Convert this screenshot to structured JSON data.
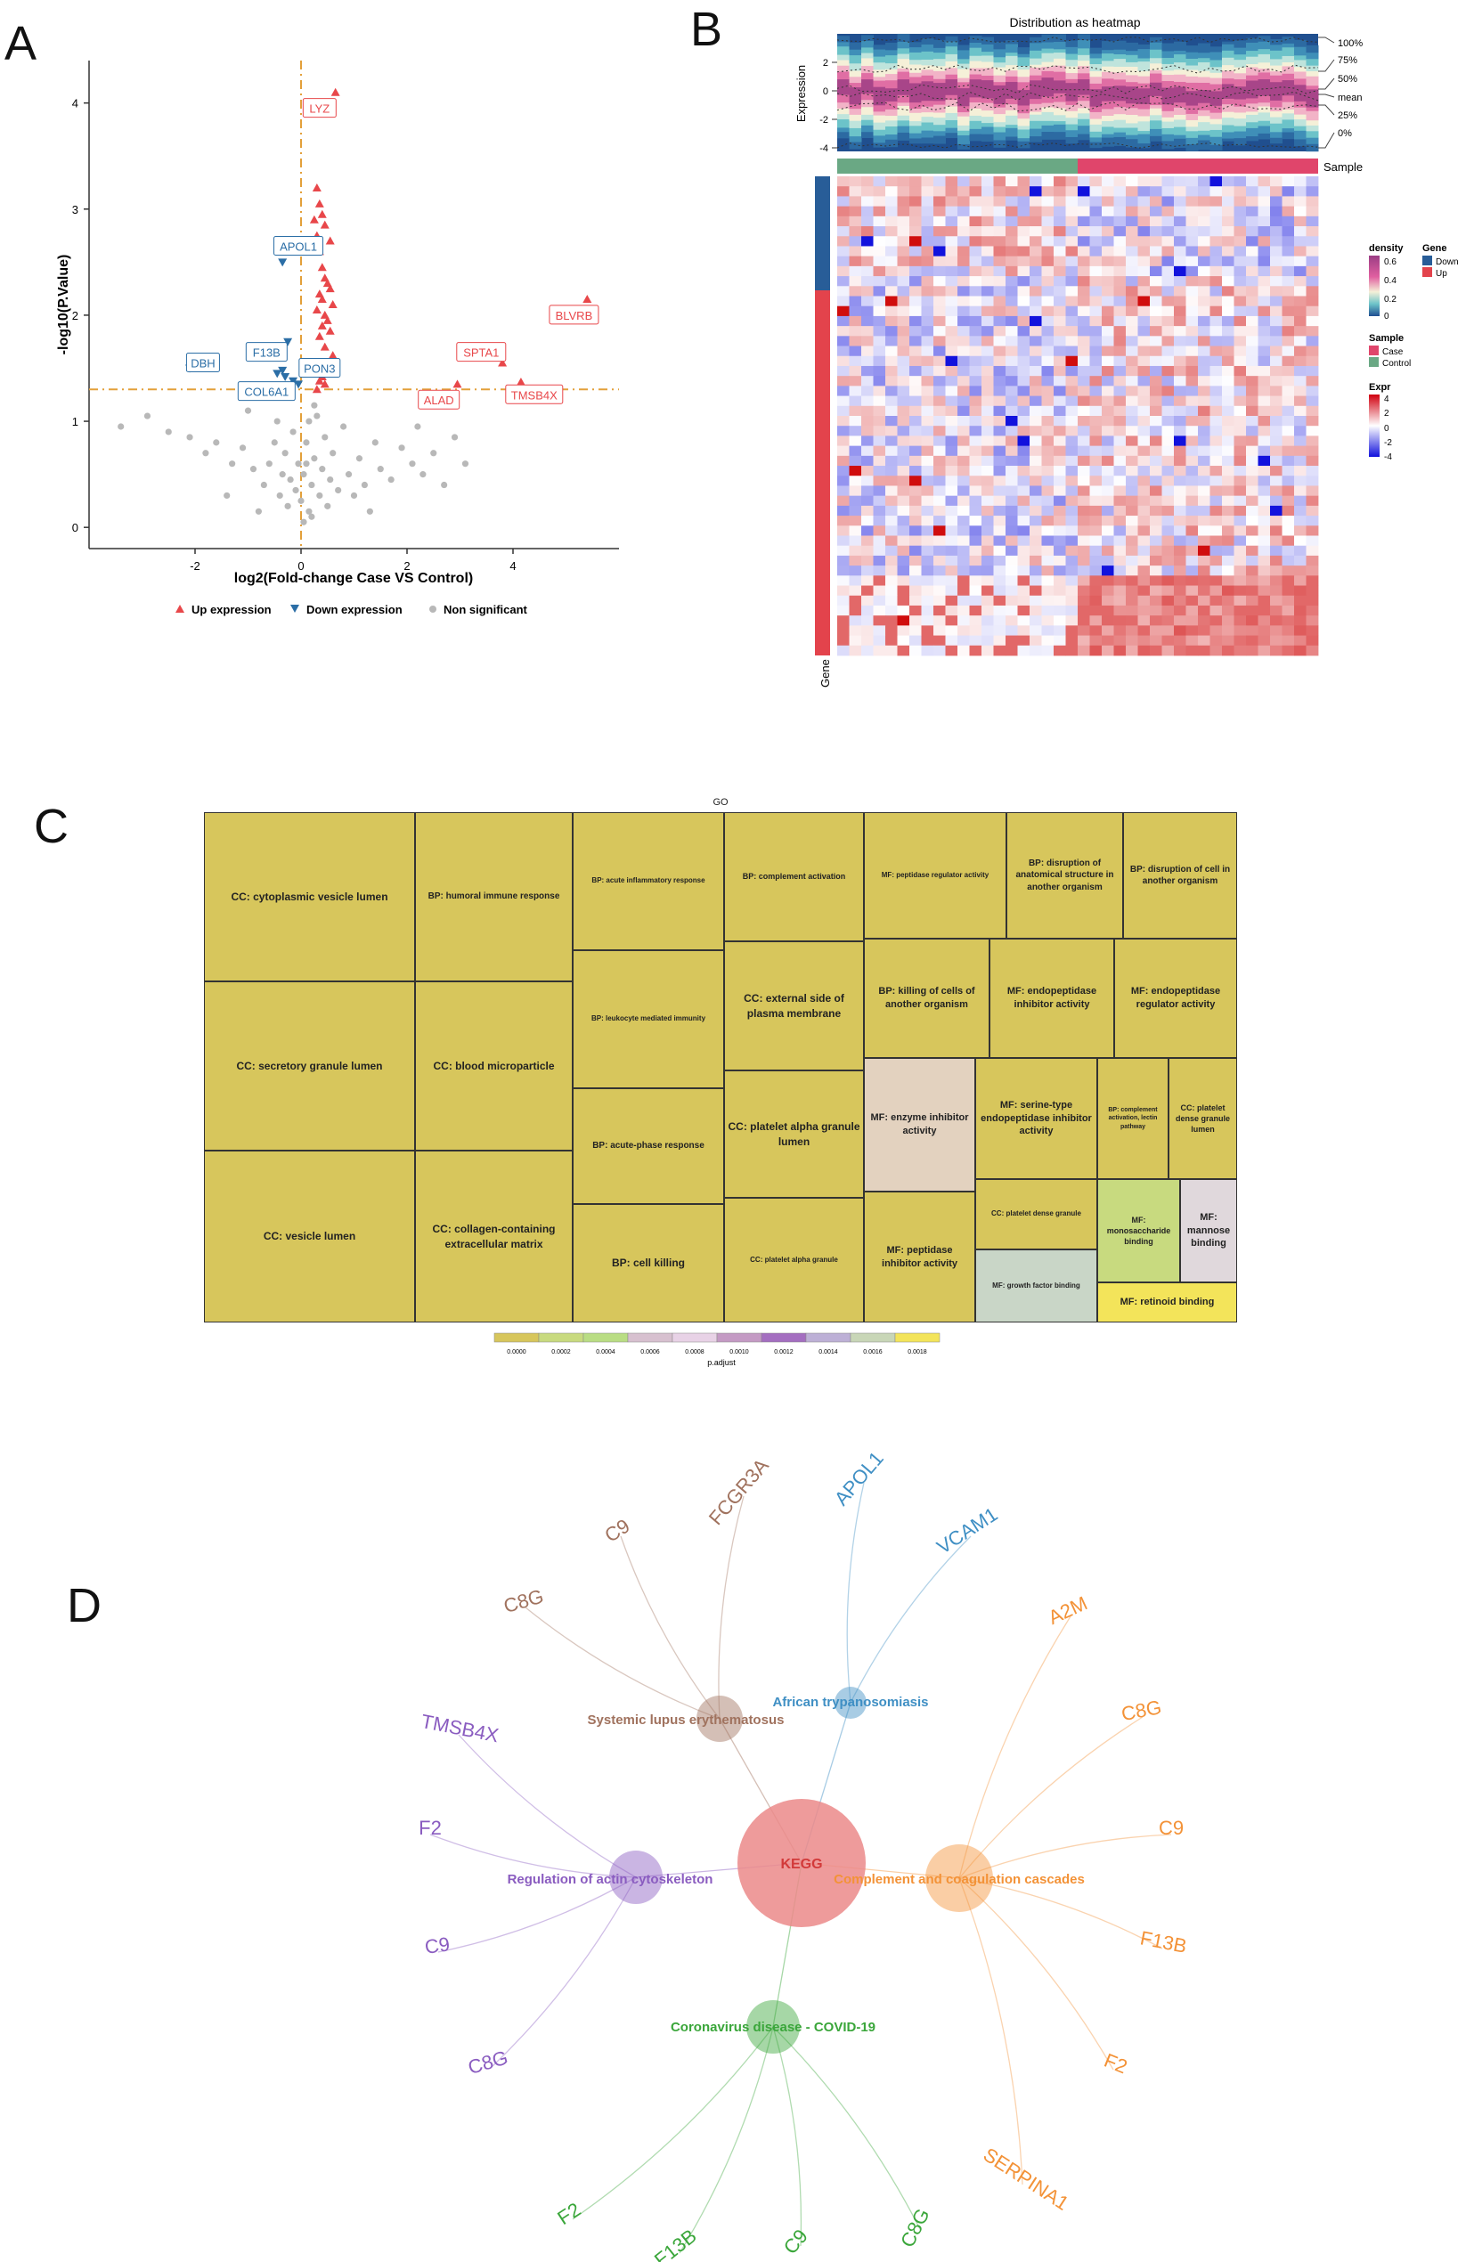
{
  "panels": {
    "a": "A",
    "b": "B",
    "c": "C",
    "d": "D"
  },
  "volcano": {
    "xlabel": "log2(Fold-change Case VS Control)",
    "ylabel": "-log10(P.Value)",
    "x_ticks": [
      "-2",
      "0",
      "2",
      "4"
    ],
    "y_ticks": [
      "0",
      "1",
      "2",
      "3",
      "4"
    ],
    "legend": {
      "up": "Up expression",
      "down": "Down expression",
      "ns": "Non significant"
    },
    "colors": {
      "up": "#e8474a",
      "down": "#2b6ea6",
      "ns": "#b8b8b8",
      "threshold": "#e3a03a"
    },
    "labels": [
      {
        "text": "LYZ",
        "type": "up",
        "x": 0.35,
        "y": 3.95
      },
      {
        "text": "APOL1",
        "type": "down",
        "x": -0.05,
        "y": 2.65
      },
      {
        "text": "BLVRB",
        "type": "up",
        "x": 5.15,
        "y": 2.0
      },
      {
        "text": "DBH",
        "type": "down",
        "x": -1.85,
        "y": 1.55
      },
      {
        "text": "F13B",
        "type": "down",
        "x": -0.65,
        "y": 1.65
      },
      {
        "text": "PON3",
        "type": "down",
        "x": 0.35,
        "y": 1.5
      },
      {
        "text": "COL6A1",
        "type": "down",
        "x": -0.65,
        "y": 1.28
      },
      {
        "text": "SPTA1",
        "type": "up",
        "x": 3.4,
        "y": 1.65
      },
      {
        "text": "ALAD",
        "type": "up",
        "x": 2.6,
        "y": 1.2
      },
      {
        "text": "TMSB4X",
        "type": "up",
        "x": 4.4,
        "y": 1.25
      }
    ]
  },
  "heatmap": {
    "title": "Distribution as heatmap",
    "ylabel_top": "Expression",
    "y_ticks": [
      "2",
      "0",
      "-2",
      "-4"
    ],
    "quantiles": [
      "100%",
      "75%",
      "50%",
      "mean",
      "25%",
      "0%"
    ],
    "sample_label": "Sample",
    "gene_label": "Gene",
    "legend": {
      "density": {
        "title": "density",
        "labels": [
          "0.6",
          "0.4",
          "0.2",
          "0"
        ]
      },
      "gene": {
        "title": "Gene",
        "items": [
          "Down",
          "Up"
        ]
      },
      "sample": {
        "title": "Sample",
        "items": [
          "Case",
          "Control"
        ]
      },
      "expr": {
        "title": "Expr",
        "labels": [
          "4",
          "2",
          "0",
          "-2",
          "-4"
        ]
      }
    }
  },
  "treemap": {
    "title": "GO",
    "cells": [
      "CC: cytoplasmic vesicle lumen",
      "CC: secretory granule lumen",
      "CC: vesicle lumen",
      "BP: humoral immune response",
      "CC: blood microparticle",
      "CC: collagen-containing extracellular matrix",
      "BP: acute inflammatory response",
      "BP: leukocyte mediated immunity",
      "BP: acute-phase response",
      "BP: cell killing",
      "BP: complement activation",
      "CC: external side of plasma membrane",
      "CC: platelet alpha granule lumen",
      "CC: platelet alpha granule",
      "MF: peptidase regulator activity",
      "BP: disruption of anatomical structure in another organism",
      "BP: disruption of cell in another organism",
      "BP: killing of cells of another organism",
      "MF: endopeptidase inhibitor activity",
      "MF: endopeptidase regulator activity",
      "MF: enzyme inhibitor activity",
      "MF: serine-type endopeptidase inhibitor activity",
      "BP: complement activation, lectin pathway",
      "CC: platelet dense granule lumen",
      "CC: platelet dense granule",
      "MF: peptidase inhibitor activity",
      "MF: monosaccharide binding",
      "MF: mannose binding",
      "MF: growth factor binding",
      "MF: retinoid binding"
    ],
    "scale_label": "p.adjust",
    "scale_ticks": [
      "0.0000",
      "0.0002",
      "0.0004",
      "0.0006",
      "0.0008",
      "0.0010",
      "0.0012",
      "0.0014",
      "0.0016",
      "0.0018"
    ]
  },
  "network": {
    "center": "KEGG",
    "pathways": [
      {
        "name": "Systemic lupus erythematosus",
        "color": "#a0725e",
        "genes": [
          "FCGR3A",
          "C9",
          "C8G"
        ]
      },
      {
        "name": "African trypanosomiasis",
        "color": "#3f8fc4",
        "genes": [
          "APOL1",
          "VCAM1"
        ]
      },
      {
        "name": "Complement and coagulation cascades",
        "color": "#f39237",
        "genes": [
          "A2M",
          "C8G",
          "C9",
          "F13B",
          "F2",
          "SERPINA1"
        ]
      },
      {
        "name": "Regulation of actin cytoskeleton",
        "color": "#8a5cc0",
        "genes": [
          "TMSB4X",
          "F2",
          "C9",
          "C8G"
        ]
      },
      {
        "name": "Coronavirus disease - COVID-19",
        "color": "#3aa63a",
        "genes": [
          "F2",
          "F13B",
          "C9",
          "C8G"
        ]
      }
    ]
  },
  "chart_data": [
    {
      "type": "scatter",
      "title": "",
      "xlabel": "log2(Fold-change Case VS Control)",
      "ylabel": "-log10(P.Value)",
      "xlim": [
        -4,
        6
      ],
      "ylim": [
        -0.2,
        4.4
      ],
      "thresholds": {
        "x": 0,
        "y": 1.3
      },
      "series": [
        {
          "name": "Up expression",
          "points": [
            [
              0.3,
              3.2
            ],
            [
              0.35,
              3.05
            ],
            [
              0.4,
              2.95
            ],
            [
              0.25,
              2.9
            ],
            [
              0.45,
              2.85
            ],
            [
              0.3,
              2.75
            ],
            [
              0.55,
              2.7
            ],
            [
              0.35,
              2.6
            ],
            [
              0.4,
              2.45
            ],
            [
              0.45,
              2.35
            ],
            [
              0.5,
              2.3
            ],
            [
              0.55,
              2.25
            ],
            [
              0.35,
              2.2
            ],
            [
              0.4,
              2.15
            ],
            [
              0.6,
              2.1
            ],
            [
              0.3,
              2.05
            ],
            [
              0.45,
              2.0
            ],
            [
              0.5,
              1.95
            ],
            [
              0.4,
              1.9
            ],
            [
              0.55,
              1.85
            ],
            [
              0.35,
              1.8
            ],
            [
              0.45,
              1.7
            ],
            [
              0.6,
              1.62
            ],
            [
              0.3,
              1.55
            ],
            [
              0.5,
              1.48
            ],
            [
              0.4,
              1.42
            ],
            [
              0.35,
              1.38
            ],
            [
              0.45,
              1.35
            ],
            [
              0.65,
              4.1
            ],
            [
              5.4,
              2.15
            ],
            [
              3.8,
              1.55
            ],
            [
              4.15,
              1.37
            ],
            [
              2.95,
              1.35
            ],
            [
              0.3,
              1.3
            ]
          ]
        },
        {
          "name": "Down expression",
          "points": [
            [
              -0.35,
              2.5
            ],
            [
              -2.1,
              1.5
            ],
            [
              -0.25,
              1.75
            ],
            [
              -0.35,
              1.48
            ],
            [
              -0.45,
              1.45
            ],
            [
              -0.3,
              1.42
            ],
            [
              -0.15,
              1.38
            ],
            [
              -0.05,
              1.35
            ],
            [
              -0.3,
              1.33
            ]
          ]
        },
        {
          "name": "Non significant",
          "points": [
            [
              -3.4,
              0.95
            ],
            [
              -2.5,
              0.9
            ],
            [
              -2.1,
              0.85
            ],
            [
              -1.8,
              0.7
            ],
            [
              -1.6,
              0.8
            ],
            [
              -1.3,
              0.6
            ],
            [
              -1.1,
              0.75
            ],
            [
              -0.9,
              0.55
            ],
            [
              -0.7,
              0.4
            ],
            [
              -0.6,
              0.6
            ],
            [
              -0.5,
              0.8
            ],
            [
              -0.4,
              0.3
            ],
            [
              -0.35,
              0.5
            ],
            [
              -0.3,
              0.7
            ],
            [
              -0.25,
              0.2
            ],
            [
              -0.2,
              0.45
            ],
            [
              -0.15,
              0.9
            ],
            [
              -0.1,
              0.35
            ],
            [
              -0.05,
              0.6
            ],
            [
              0.0,
              0.25
            ],
            [
              0.05,
              0.5
            ],
            [
              0.1,
              0.8
            ],
            [
              0.15,
              0.15
            ],
            [
              0.2,
              0.4
            ],
            [
              0.25,
              0.65
            ],
            [
              0.3,
              1.05
            ],
            [
              0.35,
              0.3
            ],
            [
              0.4,
              0.55
            ],
            [
              0.45,
              0.85
            ],
            [
              0.5,
              0.2
            ],
            [
              0.55,
              0.45
            ],
            [
              0.6,
              0.7
            ],
            [
              0.7,
              0.35
            ],
            [
              0.8,
              0.95
            ],
            [
              0.9,
              0.5
            ],
            [
              1.0,
              0.3
            ],
            [
              1.1,
              0.65
            ],
            [
              1.2,
              0.4
            ],
            [
              1.4,
              0.8
            ],
            [
              1.5,
              0.55
            ],
            [
              1.7,
              0.45
            ],
            [
              1.9,
              0.75
            ],
            [
              2.1,
              0.6
            ],
            [
              2.2,
              0.95
            ],
            [
              2.3,
              0.5
            ],
            [
              2.5,
              0.7
            ],
            [
              2.7,
              0.4
            ],
            [
              2.9,
              0.85
            ],
            [
              3.1,
              0.6
            ],
            [
              -2.9,
              1.05
            ],
            [
              -1.4,
              0.3
            ],
            [
              -0.8,
              0.15
            ],
            [
              0.05,
              0.05
            ],
            [
              0.2,
              0.1
            ],
            [
              1.3,
              0.15
            ],
            [
              -1.0,
              1.1
            ],
            [
              0.15,
              1.0
            ],
            [
              0.25,
              1.15
            ],
            [
              -0.45,
              1.0
            ],
            [
              0.1,
              0.6
            ]
          ]
        }
      ]
    },
    {
      "type": "heatmap",
      "title": "Distribution as heatmap",
      "columns": {
        "Control": 20,
        "Case": 20
      },
      "rows": {
        "Down": 10,
        "Up": 38
      },
      "colorbar": {
        "min": -4,
        "max": 4
      }
    },
    {
      "type": "treemap",
      "title": "GO",
      "colorbar": {
        "label": "p.adjust",
        "min": 0.0,
        "max": 0.0018
      }
    }
  ]
}
